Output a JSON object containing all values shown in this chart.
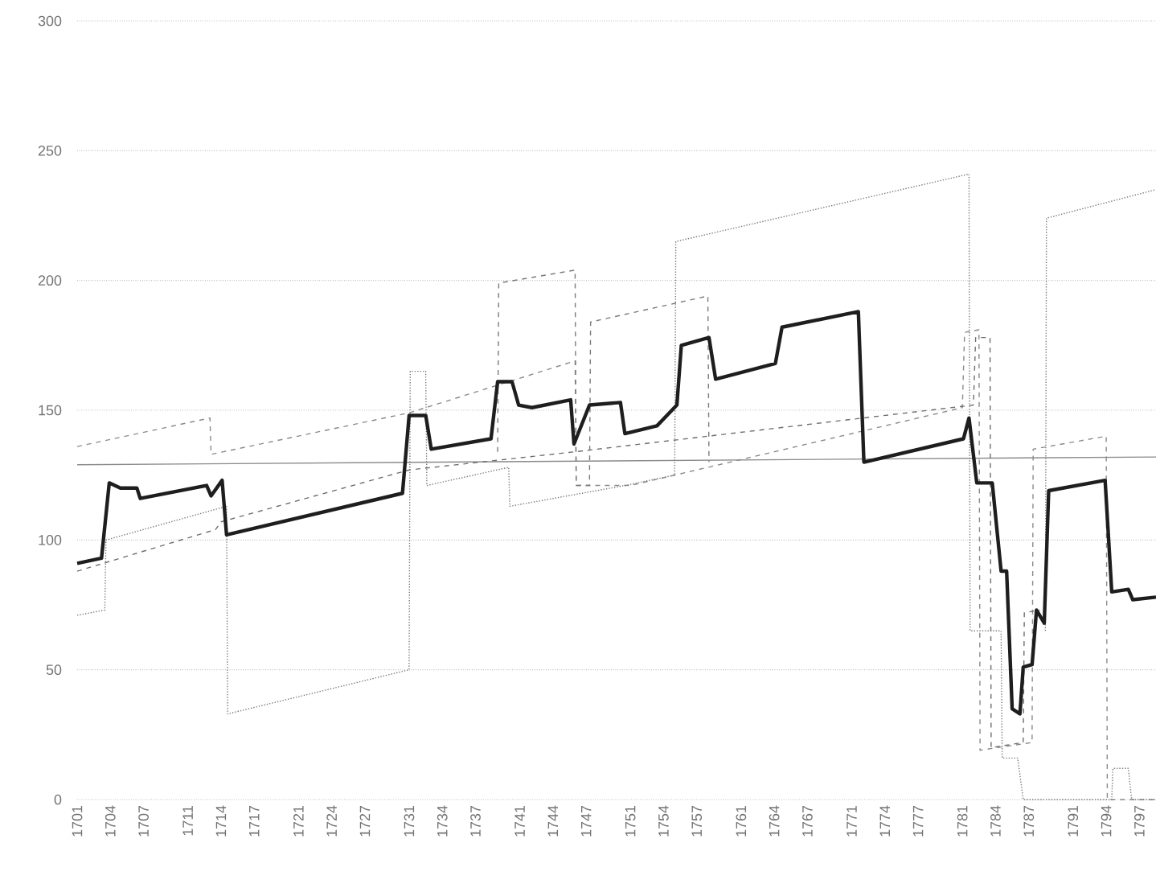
{
  "chart_data": {
    "type": "line",
    "xlim": [
      1701,
      1798.5
    ],
    "ylim": [
      0,
      300
    ],
    "xticks": [
      1701,
      1704,
      1707,
      1711,
      1714,
      1717,
      1721,
      1724,
      1727,
      1731,
      1734,
      1737,
      1741,
      1744,
      1747,
      1751,
      1754,
      1757,
      1761,
      1764,
      1767,
      1771,
      1774,
      1777,
      1781,
      1784,
      1787,
      1791,
      1794,
      1797
    ],
    "yticks": [
      0,
      50,
      100,
      150,
      200,
      250,
      300
    ],
    "grid": "y",
    "marker": "none",
    "series": [
      {
        "color": "#8a8a8a",
        "line_style": "solid",
        "x": [
          1701,
          1798.5
        ],
        "values": [
          129,
          132
        ]
      },
      {
        "color": "#8a8a8a",
        "line_style": "dashed",
        "x": [
          1701,
          1713,
          1713.1,
          1731,
          1746,
          1746.1,
          1751,
          1781,
          1781.2,
          1782.5,
          1782.6,
          1787.3,
          1787.4,
          1794,
          1794.1,
          1798.5
        ],
        "values": [
          136,
          147,
          133,
          149,
          169,
          121,
          121,
          151,
          180,
          181,
          19,
          22,
          135,
          140,
          0,
          0
        ]
      },
      {
        "color": "#6e6e6e",
        "line_style": "dashed",
        "x": [
          1701,
          1713.5,
          1714,
          1731,
          1746,
          1782,
          1782.2,
          1783.5,
          1783.6,
          1786.5,
          1786.6,
          1788
        ],
        "values": [
          88,
          104,
          107,
          127,
          134,
          152,
          178,
          178,
          20,
          22,
          72,
          73
        ]
      },
      {
        "color": "#7a7a7a",
        "line_style": "dotted",
        "x": [
          1701,
          1703.5,
          1703.6,
          1714.5,
          1714.6,
          1731,
          1731.1,
          1732.5,
          1732.6,
          1740,
          1740.1,
          1750.5,
          1755,
          1755.1,
          1781.6,
          1781.7,
          1784.5,
          1784.6,
          1786,
          1786.5,
          1794.5,
          1794.6,
          1796,
          1796.3,
          1798.5
        ],
        "values": [
          71,
          73,
          100,
          113,
          33,
          50,
          165,
          165,
          121,
          128,
          113,
          121,
          125,
          215,
          241,
          65,
          65,
          16,
          16,
          0,
          0,
          12,
          12,
          0,
          0
        ]
      },
      {
        "color": "#7a7a7a",
        "line_style": "dashed",
        "x": [
          1739,
          1739.1,
          1746,
          1746.1,
          1747.3,
          1747.4,
          1758,
          1758.1
        ],
        "values": [
          134,
          199,
          204,
          121,
          121,
          184,
          194,
          130
        ]
      },
      {
        "color": "#7a7a7a",
        "line_style": "dotted",
        "x": [
          1788.5,
          1788.6,
          1798.5
        ],
        "values": [
          65,
          224,
          235
        ]
      },
      {
        "color": "#1e1e1e",
        "line_style": "solid",
        "x": [
          1701,
          1703.2,
          1703.9,
          1704.9,
          1706.4,
          1706.7,
          1712.7,
          1713.1,
          1714.1,
          1714.5,
          1730.4,
          1731,
          1732.5,
          1733,
          1738.4,
          1739,
          1740.3,
          1740.9,
          1742.1,
          1745.6,
          1745.9,
          1747.3,
          1750.1,
          1750.5,
          1753.4,
          1755.2,
          1755.6,
          1758.1,
          1758.7,
          1764.1,
          1764.7,
          1771.6,
          1772.1,
          1781.1,
          1781.6,
          1782.3,
          1783.7,
          1784.5,
          1785,
          1785.5,
          1786.2,
          1786.5,
          1787.3,
          1787.7,
          1788.4,
          1788.8,
          1793.9,
          1794.5,
          1796,
          1796.4,
          1798.5
        ],
        "values": [
          91,
          93,
          122,
          120,
          120,
          116,
          121,
          117,
          123,
          102,
          118,
          148,
          148,
          135,
          139,
          161,
          161,
          152,
          151,
          154,
          137,
          152,
          153,
          141,
          144,
          152,
          175,
          178,
          162,
          168,
          182,
          188,
          130,
          139,
          147,
          122,
          122,
          88,
          88,
          35,
          33,
          51,
          52,
          73,
          68,
          119,
          123,
          80,
          81,
          77,
          78
        ]
      }
    ]
  }
}
